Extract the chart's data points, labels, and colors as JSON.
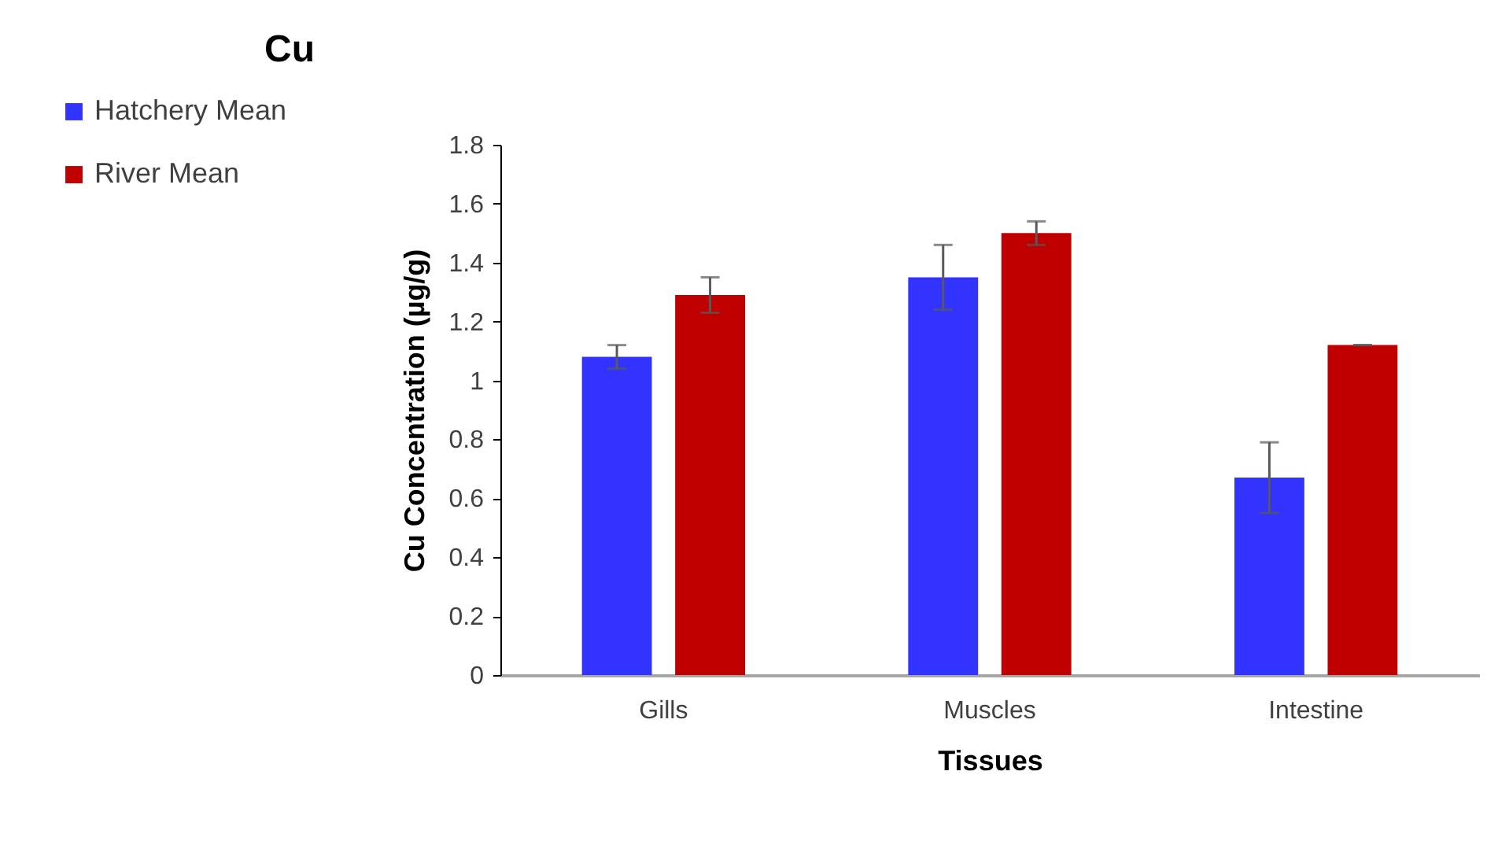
{
  "chart_data": {
    "type": "bar",
    "title": "Cu",
    "xlabel": "Tissues",
    "ylabel": "Cu Concentration (µg/g)",
    "categories": [
      "Gills",
      "Muscles",
      "Intestine"
    ],
    "series": [
      {
        "name": "Hatchery Mean",
        "color": "#3333ff",
        "values": [
          1.08,
          1.35,
          0.67
        ],
        "errors": [
          0.04,
          0.11,
          0.12
        ]
      },
      {
        "name": "River Mean",
        "color": "#c00000",
        "values": [
          1.29,
          1.5,
          1.12
        ],
        "errors": [
          0.06,
          0.04,
          0
        ]
      }
    ],
    "ylim": [
      0,
      1.8
    ],
    "yticks": [
      0,
      0.2,
      0.4,
      0.6,
      0.8,
      1,
      1.2,
      1.4,
      1.6,
      1.8
    ],
    "grid": false,
    "legend": "top left"
  }
}
